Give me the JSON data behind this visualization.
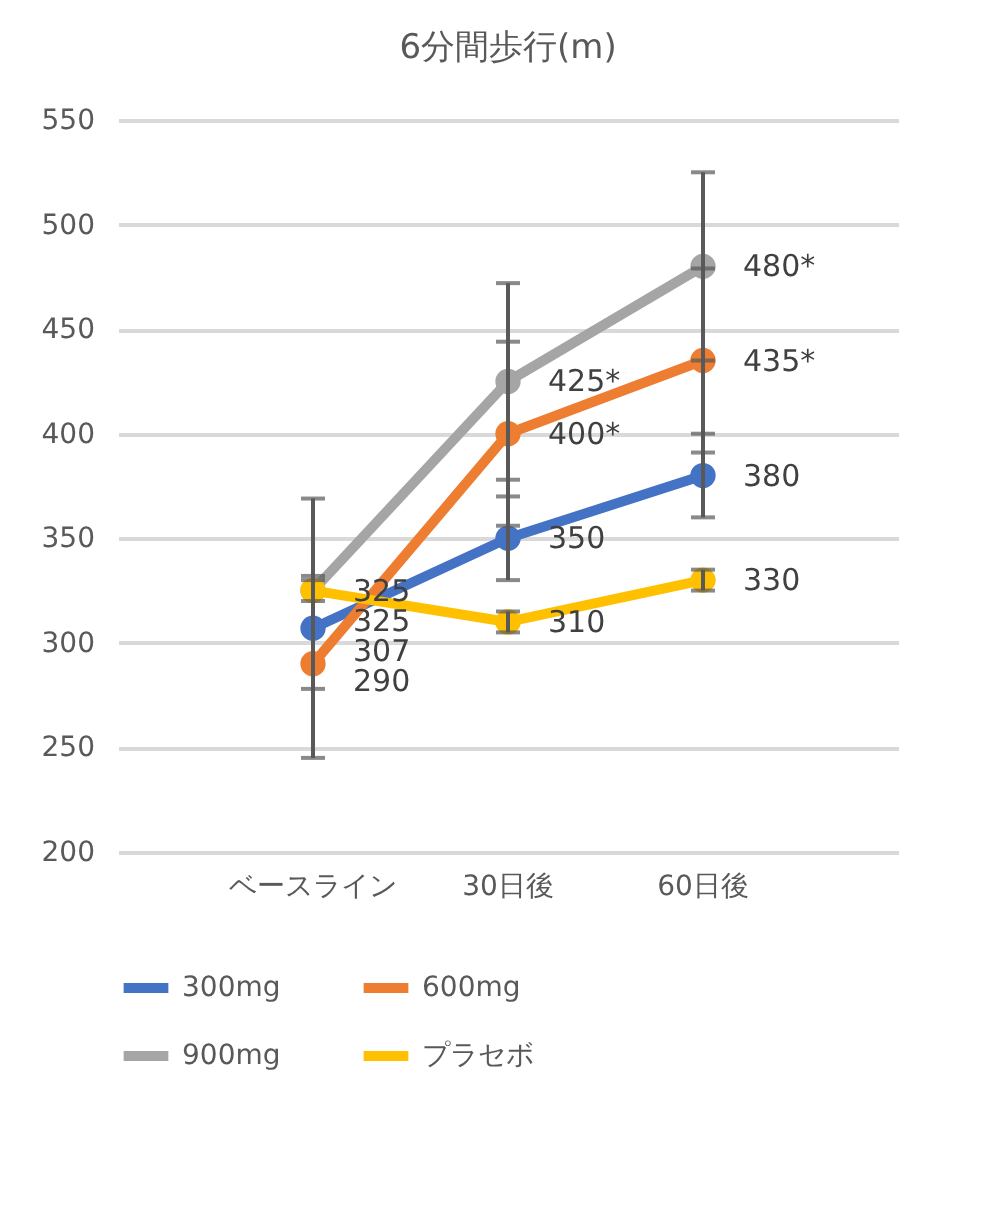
{
  "chart_data": {
    "type": "line",
    "title": "6分間歩行(m)",
    "categories": [
      "ベースライン",
      "30日後",
      "60日後"
    ],
    "series": [
      {
        "name": "300mg",
        "color": "#4472c4",
        "values": [
          307,
          350,
          380
        ],
        "value_labels": [
          "307",
          "350",
          "380"
        ],
        "errors": [
          62,
          20,
          20
        ]
      },
      {
        "name": "600mg",
        "color": "#ed7d31",
        "values": [
          290,
          400,
          435
        ],
        "value_labels": [
          "290",
          "400*",
          "435*"
        ],
        "errors": [
          [
            278,
            332
          ],
          44,
          44
        ]
      },
      {
        "name": "900mg",
        "color": "#a5a5a5",
        "values": [
          325,
          425,
          480
        ],
        "value_labels": [
          "325",
          "425*",
          "480*"
        ],
        "errors": [
          null,
          47,
          45
        ]
      },
      {
        "name": "プラセボ",
        "color": "#ffc000",
        "values": [
          325,
          310,
          330
        ],
        "value_labels": [
          "325",
          "310",
          "330"
        ],
        "errors": [
          5,
          5,
          5
        ]
      }
    ],
    "ylim": [
      200,
      550
    ],
    "yticks": [
      200,
      250,
      300,
      350,
      400,
      450,
      500,
      550
    ],
    "grid": "y",
    "legend": "bottom",
    "marker": "circle",
    "line_style": "solid"
  }
}
